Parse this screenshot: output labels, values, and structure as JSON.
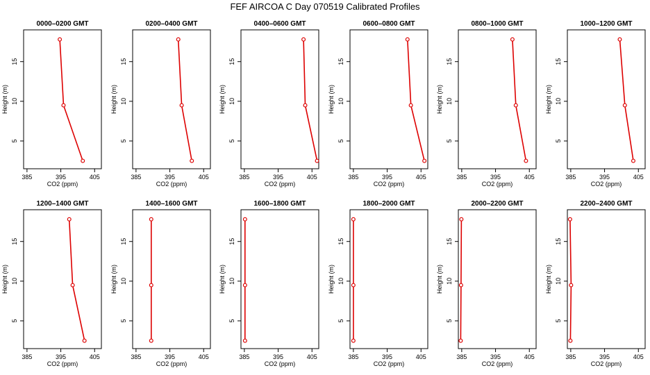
{
  "figure": {
    "title": "FEF AIRCOA C  Day 070519  Calibrated Profiles",
    "line_color": "#dd0000",
    "axis_color": "#000000"
  },
  "chart_data": [
    {
      "type": "line",
      "title": "0000–0200 GMT",
      "xlabel": "CO2 (ppm)",
      "ylabel": "Height (m)",
      "xlim": [
        384,
        407
      ],
      "ylim": [
        1.5,
        19
      ],
      "xticks": [
        385,
        395,
        405
      ],
      "yticks": [
        5,
        10,
        15
      ],
      "series": [
        {
          "x": [
            401.5,
            395.8,
            394.7
          ],
          "y": [
            2.5,
            9.5,
            17.8
          ]
        }
      ]
    },
    {
      "type": "line",
      "title": "0200–0400 GMT",
      "xlabel": "CO2 (ppm)",
      "ylabel": "Height (m)",
      "xlim": [
        384,
        407
      ],
      "ylim": [
        1.5,
        19
      ],
      "xticks": [
        385,
        395,
        405
      ],
      "yticks": [
        5,
        10,
        15
      ],
      "series": [
        {
          "x": [
            401.5,
            398.5,
            397.5
          ],
          "y": [
            2.5,
            9.5,
            17.8
          ]
        }
      ]
    },
    {
      "type": "line",
      "title": "0400–0600 GMT",
      "xlabel": "CO2 (ppm)",
      "ylabel": "Height (m)",
      "xlim": [
        384,
        407
      ],
      "ylim": [
        1.5,
        19
      ],
      "xticks": [
        385,
        395,
        405
      ],
      "yticks": [
        5,
        10,
        15
      ],
      "series": [
        {
          "x": [
            406.5,
            403.0,
            402.5
          ],
          "y": [
            2.5,
            9.5,
            17.8
          ]
        }
      ]
    },
    {
      "type": "line",
      "title": "0600–0800 GMT",
      "xlabel": "CO2 (ppm)",
      "ylabel": "Height (m)",
      "xlim": [
        384,
        407
      ],
      "ylim": [
        1.5,
        19
      ],
      "xticks": [
        385,
        395,
        405
      ],
      "yticks": [
        5,
        10,
        15
      ],
      "series": [
        {
          "x": [
            406.0,
            402.0,
            401.0
          ],
          "y": [
            2.5,
            9.5,
            17.8
          ]
        }
      ]
    },
    {
      "type": "line",
      "title": "0800–1000 GMT",
      "xlabel": "CO2 (ppm)",
      "ylabel": "Height (m)",
      "xlim": [
        384,
        407
      ],
      "ylim": [
        1.5,
        19
      ],
      "xticks": [
        385,
        395,
        405
      ],
      "yticks": [
        5,
        10,
        15
      ],
      "series": [
        {
          "x": [
            404.0,
            401.0,
            400.0
          ],
          "y": [
            2.5,
            9.5,
            17.8
          ]
        }
      ]
    },
    {
      "type": "line",
      "title": "1000–1200 GMT",
      "xlabel": "CO2 (ppm)",
      "ylabel": "Height (m)",
      "xlim": [
        384,
        407
      ],
      "ylim": [
        1.5,
        19
      ],
      "xticks": [
        385,
        395,
        405
      ],
      "yticks": [
        5,
        10,
        15
      ],
      "series": [
        {
          "x": [
            403.5,
            401.0,
            399.5
          ],
          "y": [
            2.5,
            9.5,
            17.8
          ]
        }
      ]
    },
    {
      "type": "line",
      "title": "1200–1400 GMT",
      "xlabel": "CO2 (ppm)",
      "ylabel": "Height (m)",
      "xlim": [
        384,
        407
      ],
      "ylim": [
        1.5,
        19
      ],
      "xticks": [
        385,
        395,
        405
      ],
      "yticks": [
        5,
        10,
        15
      ],
      "series": [
        {
          "x": [
            402.0,
            398.5,
            397.5
          ],
          "y": [
            2.5,
            9.5,
            17.8
          ]
        }
      ]
    },
    {
      "type": "line",
      "title": "1400–1600 GMT",
      "xlabel": "CO2 (ppm)",
      "ylabel": "Height (m)",
      "xlim": [
        384,
        407
      ],
      "ylim": [
        1.5,
        19
      ],
      "xticks": [
        385,
        395,
        405
      ],
      "yticks": [
        5,
        10,
        15
      ],
      "series": [
        {
          "x": [
            389.5,
            389.5,
            389.5
          ],
          "y": [
            2.5,
            9.5,
            17.8
          ]
        }
      ]
    },
    {
      "type": "line",
      "title": "1600–1800 GMT",
      "xlabel": "CO2 (ppm)",
      "ylabel": "Height (m)",
      "xlim": [
        384,
        407
      ],
      "ylim": [
        1.5,
        19
      ],
      "xticks": [
        385,
        395,
        405
      ],
      "yticks": [
        5,
        10,
        15
      ],
      "series": [
        {
          "x": [
            385.2,
            385.2,
            385.2
          ],
          "y": [
            2.5,
            9.5,
            17.8
          ]
        }
      ]
    },
    {
      "type": "line",
      "title": "1800–2000 GMT",
      "xlabel": "CO2 (ppm)",
      "ylabel": "Height (m)",
      "xlim": [
        384,
        407
      ],
      "ylim": [
        1.5,
        19
      ],
      "xticks": [
        385,
        395,
        405
      ],
      "yticks": [
        5,
        10,
        15
      ],
      "series": [
        {
          "x": [
            385.0,
            385.0,
            385.0
          ],
          "y": [
            2.5,
            9.5,
            17.8
          ]
        }
      ]
    },
    {
      "type": "line",
      "title": "2000–2200 GMT",
      "xlabel": "CO2 (ppm)",
      "ylabel": "Height (m)",
      "xlim": [
        384,
        407
      ],
      "ylim": [
        1.5,
        19
      ],
      "xticks": [
        385,
        395,
        405
      ],
      "yticks": [
        5,
        10,
        15
      ],
      "series": [
        {
          "x": [
            384.7,
            384.8,
            384.9
          ],
          "y": [
            2.5,
            9.5,
            17.8
          ]
        }
      ]
    },
    {
      "type": "line",
      "title": "2200–2400 GMT",
      "xlabel": "CO2 (ppm)",
      "ylabel": "Height (m)",
      "xlim": [
        384,
        407
      ],
      "ylim": [
        1.5,
        19
      ],
      "xticks": [
        385,
        395,
        405
      ],
      "yticks": [
        5,
        10,
        15
      ],
      "series": [
        {
          "x": [
            384.9,
            385.1,
            384.8
          ],
          "y": [
            2.5,
            9.5,
            17.8
          ]
        }
      ]
    }
  ]
}
